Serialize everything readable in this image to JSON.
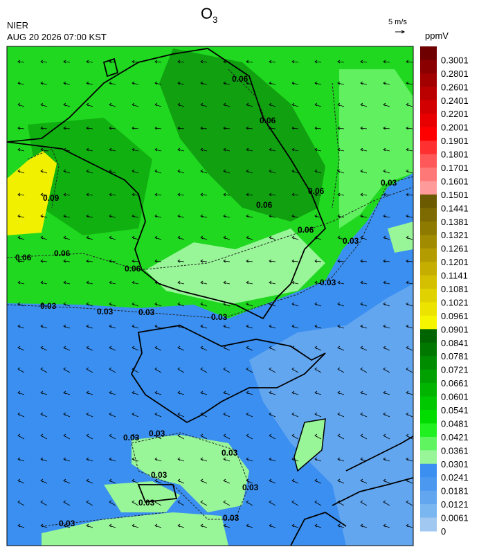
{
  "header": {
    "title": "O",
    "title_subscript": "3",
    "agency": "NIER",
    "timestamp": "AUG 20 2026 07:00 KST",
    "wind_scale": "5 m/s"
  },
  "colorbar": {
    "unit": "ppmV",
    "labels": [
      "0.3001",
      "0.2801",
      "0.2601",
      "0.2401",
      "0.2201",
      "0.2001",
      "0.1901",
      "0.1801",
      "0.1701",
      "0.1601",
      "0.1501",
      "0.1441",
      "0.1381",
      "0.1321",
      "0.1261",
      "0.1201",
      "0.1141",
      "0.1081",
      "0.1021",
      "0.0961",
      "0.0901",
      "0.0841",
      "0.0781",
      "0.0721",
      "0.0661",
      "0.0601",
      "0.0541",
      "0.0481",
      "0.0421",
      "0.0361",
      "0.0301",
      "0.0241",
      "0.0181",
      "0.0121",
      "0.0061",
      "0"
    ],
    "colors": [
      "#6e0000",
      "#8a0000",
      "#a30000",
      "#bb0000",
      "#d20000",
      "#e80000",
      "#ff0000",
      "#ff3030",
      "#ff5858",
      "#ff7878",
      "#ff9a9a",
      "#6b5a00",
      "#7d6a00",
      "#8f7a00",
      "#a18b00",
      "#b39c00",
      "#c5ae00",
      "#d4c000",
      "#e0d200",
      "#ece400",
      "#f5f500",
      "#006400",
      "#007800",
      "#008c00",
      "#00a000",
      "#00b400",
      "#00c800",
      "#00dc00",
      "#20ef20",
      "#60f560",
      "#98f598",
      "#3a8ff0",
      "#4a98f0",
      "#62a6f0",
      "#7ab6f0",
      "#a0c8f0"
    ]
  },
  "contour_labels": [
    "0.09",
    "0.06",
    "0.06",
    "0.06",
    "0.06",
    "0.06",
    "0.06",
    "0.06",
    "0.06",
    "0.03",
    "0.03",
    "0.03",
    "0.03",
    "0.03",
    "0.03",
    "0.03",
    "0.03",
    "0.03",
    "0.03",
    "0.03",
    "0.03",
    "0.03",
    "0.03",
    "0.03"
  ]
}
